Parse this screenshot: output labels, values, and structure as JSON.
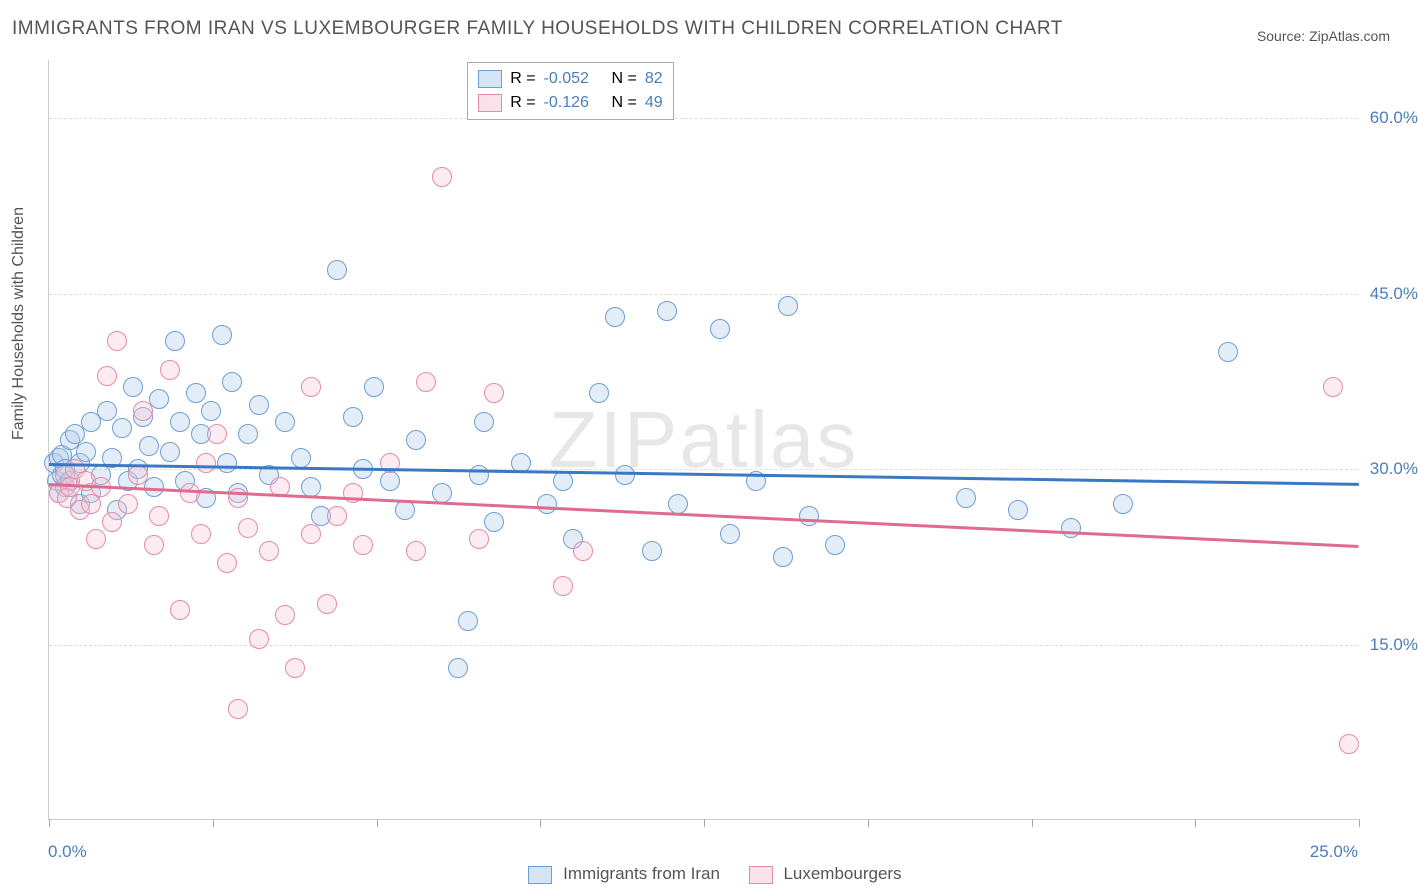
{
  "title": "IMMIGRANTS FROM IRAN VS LUXEMBOURGER FAMILY HOUSEHOLDS WITH CHILDREN CORRELATION CHART",
  "source_prefix": "Source: ",
  "source_name": "ZipAtlas.com",
  "ylabel": "Family Households with Children",
  "watermark": "ZIPatlas",
  "chart": {
    "type": "scatter",
    "background_color": "#ffffff",
    "grid_color": "#dddddd",
    "grid_dash": "3,3",
    "axis_color": "#cccccc",
    "tick_label_color": "#4a7ebb",
    "tick_label_fontsize": 17,
    "title_color": "#555555",
    "title_fontsize": 19,
    "ylabel_fontsize": 16,
    "xlim": [
      0,
      25
    ],
    "ylim": [
      0,
      65
    ],
    "ytick_values": [
      15,
      30,
      45,
      60
    ],
    "ytick_labels": [
      "15.0%",
      "30.0%",
      "45.0%",
      "60.0%"
    ],
    "xtick_values": [
      0,
      3.125,
      6.25,
      9.375,
      12.5,
      15.625,
      18.75,
      21.875,
      25
    ],
    "xtick_labels": {
      "0": "0.0%",
      "25": "25.0%"
    },
    "marker_radius": 10,
    "marker_border_width": 1.5,
    "marker_fill_opacity": 0.35,
    "trend_line_width": 2.5,
    "series": [
      {
        "id": "iran",
        "label": "Immigrants from Iran",
        "fill_color": "#aecbeb",
        "border_color": "#6e9fd4",
        "line_color": "#3b78c4",
        "R": "-0.052",
        "N": "82",
        "trend": {
          "x1": 0,
          "y1": 30.5,
          "x2": 25,
          "y2": 28.8
        },
        "points": [
          [
            0.1,
            30.5
          ],
          [
            0.15,
            29.0
          ],
          [
            0.2,
            31.0
          ],
          [
            0.2,
            28.0
          ],
          [
            0.25,
            29.5
          ],
          [
            0.25,
            31.2
          ],
          [
            0.3,
            30.0
          ],
          [
            0.3,
            28.5
          ],
          [
            0.4,
            32.5
          ],
          [
            0.4,
            29.0
          ],
          [
            0.5,
            33.0
          ],
          [
            0.6,
            30.5
          ],
          [
            0.6,
            27.0
          ],
          [
            0.7,
            31.5
          ],
          [
            0.8,
            34.0
          ],
          [
            0.8,
            28.0
          ],
          [
            1.0,
            29.5
          ],
          [
            1.1,
            35.0
          ],
          [
            1.2,
            31.0
          ],
          [
            1.3,
            26.5
          ],
          [
            1.4,
            33.5
          ],
          [
            1.5,
            29.0
          ],
          [
            1.6,
            37.0
          ],
          [
            1.7,
            30.0
          ],
          [
            1.8,
            34.5
          ],
          [
            1.9,
            32.0
          ],
          [
            2.0,
            28.5
          ],
          [
            2.1,
            36.0
          ],
          [
            2.3,
            31.5
          ],
          [
            2.4,
            41.0
          ],
          [
            2.5,
            34.0
          ],
          [
            2.6,
            29.0
          ],
          [
            2.8,
            36.5
          ],
          [
            2.9,
            33.0
          ],
          [
            3.0,
            27.5
          ],
          [
            3.1,
            35.0
          ],
          [
            3.3,
            41.5
          ],
          [
            3.4,
            30.5
          ],
          [
            3.5,
            37.5
          ],
          [
            3.6,
            28.0
          ],
          [
            3.8,
            33.0
          ],
          [
            4.0,
            35.5
          ],
          [
            4.2,
            29.5
          ],
          [
            4.5,
            34.0
          ],
          [
            4.8,
            31.0
          ],
          [
            5.0,
            28.5
          ],
          [
            5.2,
            26.0
          ],
          [
            5.5,
            47.0
          ],
          [
            5.8,
            34.5
          ],
          [
            6.0,
            30.0
          ],
          [
            6.2,
            37.0
          ],
          [
            6.5,
            29.0
          ],
          [
            6.8,
            26.5
          ],
          [
            7.0,
            32.5
          ],
          [
            7.5,
            28.0
          ],
          [
            7.8,
            13.0
          ],
          [
            8.0,
            17.0
          ],
          [
            8.2,
            29.5
          ],
          [
            8.3,
            34.0
          ],
          [
            8.5,
            25.5
          ],
          [
            9.0,
            30.5
          ],
          [
            9.5,
            27.0
          ],
          [
            9.8,
            29.0
          ],
          [
            10.0,
            24.0
          ],
          [
            10.5,
            36.5
          ],
          [
            10.8,
            43.0
          ],
          [
            11.0,
            29.5
          ],
          [
            11.5,
            23.0
          ],
          [
            11.8,
            43.5
          ],
          [
            12.0,
            27.0
          ],
          [
            12.8,
            42.0
          ],
          [
            13.0,
            24.5
          ],
          [
            13.5,
            29.0
          ],
          [
            14.0,
            22.5
          ],
          [
            14.1,
            44.0
          ],
          [
            14.5,
            26.0
          ],
          [
            15.0,
            23.5
          ],
          [
            17.5,
            27.5
          ],
          [
            18.5,
            26.5
          ],
          [
            19.5,
            25.0
          ],
          [
            20.5,
            27.0
          ],
          [
            22.5,
            40.0
          ]
        ]
      },
      {
        "id": "lux",
        "label": "Luxembourgers",
        "fill_color": "#f5c6d4",
        "border_color": "#e48ca6",
        "line_color": "#e06b8f",
        "R": "-0.126",
        "N": "49",
        "trend": {
          "x1": 0,
          "y1": 28.8,
          "x2": 25,
          "y2": 23.5
        },
        "points": [
          [
            0.2,
            28.0
          ],
          [
            0.3,
            29.5
          ],
          [
            0.35,
            27.5
          ],
          [
            0.4,
            28.5
          ],
          [
            0.5,
            30.0
          ],
          [
            0.6,
            26.5
          ],
          [
            0.7,
            29.0
          ],
          [
            0.8,
            27.0
          ],
          [
            0.9,
            24.0
          ],
          [
            1.0,
            28.5
          ],
          [
            1.1,
            38.0
          ],
          [
            1.2,
            25.5
          ],
          [
            1.3,
            41.0
          ],
          [
            1.5,
            27.0
          ],
          [
            1.7,
            29.5
          ],
          [
            1.8,
            35.0
          ],
          [
            2.0,
            23.5
          ],
          [
            2.1,
            26.0
          ],
          [
            2.3,
            38.5
          ],
          [
            2.5,
            18.0
          ],
          [
            2.7,
            28.0
          ],
          [
            2.9,
            24.5
          ],
          [
            3.0,
            30.5
          ],
          [
            3.2,
            33.0
          ],
          [
            3.4,
            22.0
          ],
          [
            3.6,
            27.5
          ],
          [
            3.6,
            9.5
          ],
          [
            3.8,
            25.0
          ],
          [
            4.0,
            15.5
          ],
          [
            4.2,
            23.0
          ],
          [
            4.4,
            28.5
          ],
          [
            4.5,
            17.5
          ],
          [
            4.7,
            13.0
          ],
          [
            5.0,
            24.5
          ],
          [
            5.0,
            37.0
          ],
          [
            5.3,
            18.5
          ],
          [
            5.5,
            26.0
          ],
          [
            5.8,
            28.0
          ],
          [
            6.0,
            23.5
          ],
          [
            6.5,
            30.5
          ],
          [
            7.0,
            23.0
          ],
          [
            7.2,
            37.5
          ],
          [
            7.5,
            55.0
          ],
          [
            8.2,
            24.0
          ],
          [
            8.5,
            36.5
          ],
          [
            9.8,
            20.0
          ],
          [
            10.2,
            23.0
          ],
          [
            24.5,
            37.0
          ],
          [
            24.8,
            6.5
          ]
        ]
      }
    ],
    "legend_top": {
      "R_label": "R =",
      "N_label": "N ="
    }
  }
}
